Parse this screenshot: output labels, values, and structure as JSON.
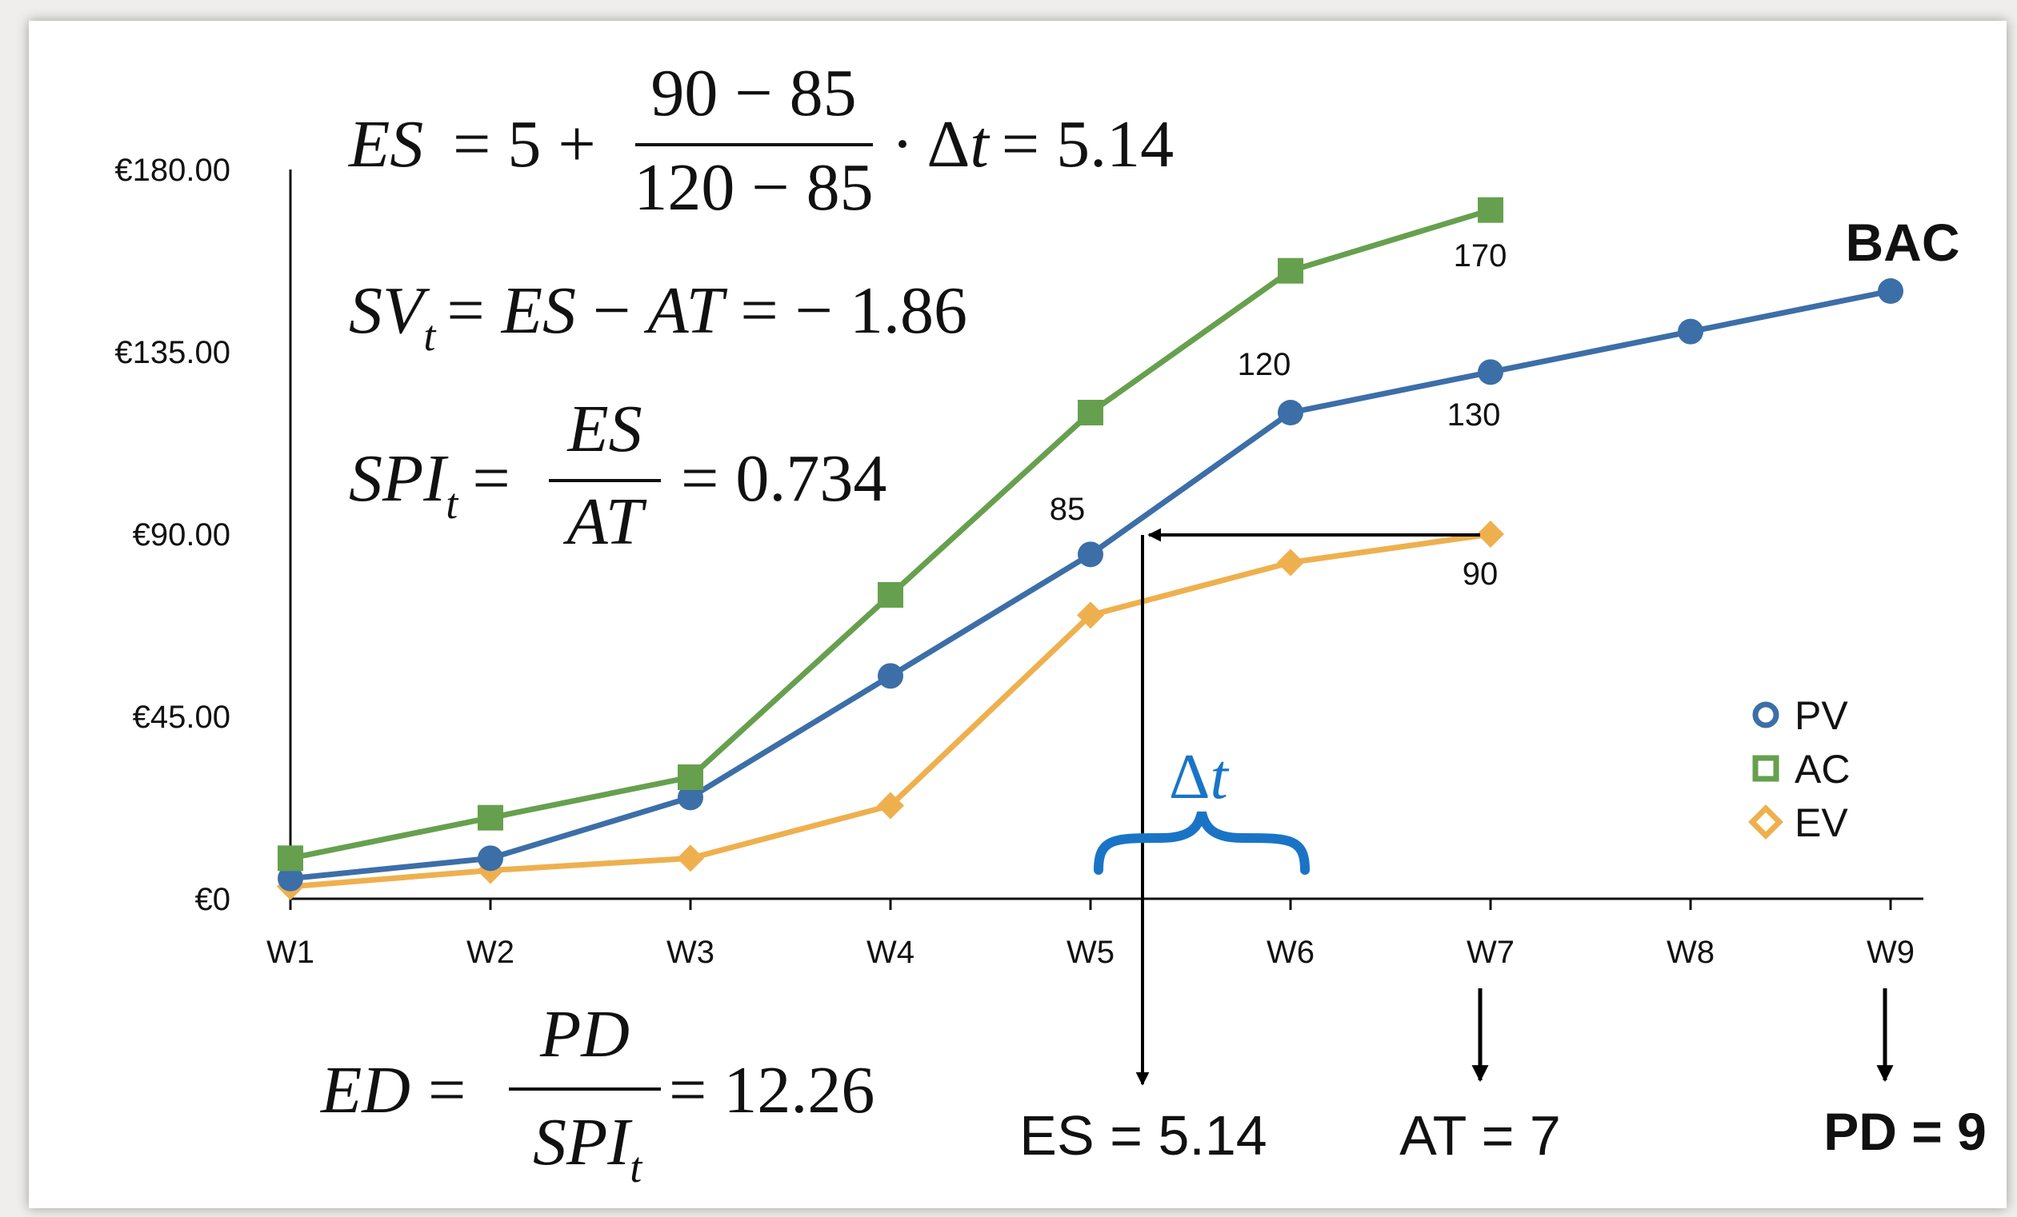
{
  "chart_data": {
    "type": "line",
    "categories": [
      "W1",
      "W2",
      "W3",
      "W4",
      "W5",
      "W6",
      "W7",
      "W8",
      "W9"
    ],
    "y_tick_labels": [
      "€0",
      "€45.00",
      "€90.00",
      "€135.00",
      "€180.00"
    ],
    "ylim": [
      0,
      180
    ],
    "grid": false,
    "legend_position": "right",
    "series": [
      {
        "name": "PV",
        "marker": "circle",
        "color": "#3c6ea8",
        "values": [
          5,
          10,
          25,
          55,
          85,
          120,
          130,
          140,
          150
        ]
      },
      {
        "name": "AC",
        "marker": "square",
        "color": "#66a04e",
        "values": [
          10,
          20,
          30,
          75,
          120,
          155,
          170,
          null,
          null
        ]
      },
      {
        "name": "EV",
        "marker": "diamond",
        "color": "#eeb04e",
        "values": [
          3,
          7,
          10,
          23,
          70,
          83,
          90,
          null,
          null
        ]
      }
    ],
    "data_labels": {
      "l85": "85",
      "l120": "120",
      "l130": "130",
      "l170": "170",
      "l90": "90"
    },
    "bac_label": "BAC"
  },
  "formulas": {
    "es_left": "ES",
    "es_eq": "= 5 +",
    "es_num": "90 − 85",
    "es_den": "120 − 85",
    "es_dt": "· Δ",
    "es_t": "t",
    "es_res": "= 5.14",
    "sv_main": "SV",
    "sv_sub": "t",
    "sv_mid": "= ",
    "sv_es": "ES",
    "sv_minus": " − ",
    "sv_at": "AT",
    "sv_res": " = − 1.86",
    "spi_main": "SPI",
    "spi_sub": "t",
    "spi_eq": "=",
    "spi_num": "ES",
    "spi_den": "AT",
    "spi_res": "= 0.734",
    "ed_main": "ED",
    "ed_eq": "=",
    "ed_num": "PD",
    "ed_den": "SPI",
    "ed_den_sub": "t",
    "ed_res": "= 12.26"
  },
  "annotations": {
    "delta_sym": "Δ",
    "delta_t": "t",
    "delta_color": "#1a74c6",
    "es_label": "ES = 5.14",
    "es_label_color": "#e8221c",
    "at_label": "AT = 7",
    "pd_label": "PD = 9"
  }
}
